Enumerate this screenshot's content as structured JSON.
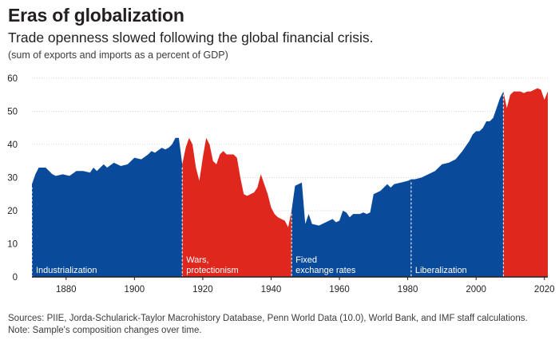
{
  "header": {
    "title": "Eras of globalization",
    "subtitle": "Trade openness slowed following the global financial crisis.",
    "units_note": "(sum of exports and imports as a percent of GDP)"
  },
  "footer": {
    "sources": "Sources: PIIE, Jorda-Schularick-Taylor Macrohistory Database, Penn World Data (10.0), World Bank, and IMF staff calculations.",
    "note": "Note: Sample's composition changes over time."
  },
  "colors": {
    "blue": "#0a4a9a",
    "red": "#e0271d",
    "axis": "#231f20",
    "grid": "#c8c8c8"
  },
  "chart_data": {
    "type": "area",
    "title": "Eras of globalization",
    "xlabel": "",
    "ylabel": "",
    "xlim": [
      1870,
      2021
    ],
    "ylim": [
      0,
      60
    ],
    "x_ticks": [
      1880,
      1900,
      1920,
      1940,
      1960,
      1980,
      2000,
      2020
    ],
    "y_ticks": [
      0,
      10,
      20,
      30,
      40,
      50,
      60
    ],
    "grid": "horizontal",
    "eras": [
      {
        "label": "Industrialization",
        "start": 1870,
        "end": 1914,
        "color": "blue",
        "points": [
          [
            1870,
            28
          ],
          [
            1871,
            31
          ],
          [
            1872,
            33
          ],
          [
            1874,
            33
          ],
          [
            1876,
            31
          ],
          [
            1877,
            30.5
          ],
          [
            1879,
            31
          ],
          [
            1881,
            30.5
          ],
          [
            1883,
            32
          ],
          [
            1885,
            32
          ],
          [
            1887,
            31.5
          ],
          [
            1888,
            33
          ],
          [
            1889,
            32
          ],
          [
            1891,
            34
          ],
          [
            1892,
            33
          ],
          [
            1894,
            34.5
          ],
          [
            1896,
            33.5
          ],
          [
            1898,
            34
          ],
          [
            1900,
            36
          ],
          [
            1902,
            35.5
          ],
          [
            1904,
            37
          ],
          [
            1905,
            38
          ],
          [
            1906,
            37.5
          ],
          [
            1908,
            39
          ],
          [
            1909,
            38.5
          ],
          [
            1910,
            39
          ],
          [
            1911,
            40
          ],
          [
            1912,
            42
          ],
          [
            1913,
            42
          ],
          [
            1914,
            34
          ]
        ]
      },
      {
        "label": "Wars, protectionism",
        "start": 1914,
        "end": 1946,
        "color": "red",
        "points": [
          [
            1914,
            34
          ],
          [
            1915,
            39
          ],
          [
            1916,
            42
          ],
          [
            1917,
            40
          ],
          [
            1918,
            33
          ],
          [
            1919,
            29
          ],
          [
            1920,
            36
          ],
          [
            1921,
            42
          ],
          [
            1922,
            40
          ],
          [
            1923,
            35
          ],
          [
            1924,
            34
          ],
          [
            1925,
            37
          ],
          [
            1926,
            38
          ],
          [
            1927,
            37
          ],
          [
            1928,
            37
          ],
          [
            1929,
            37
          ],
          [
            1930,
            36
          ],
          [
            1931,
            30
          ],
          [
            1932,
            25
          ],
          [
            1933,
            24.5
          ],
          [
            1934,
            25
          ],
          [
            1935,
            25.5
          ],
          [
            1936,
            27
          ],
          [
            1937,
            31
          ],
          [
            1938,
            28
          ],
          [
            1939,
            25
          ],
          [
            1940,
            21
          ],
          [
            1941,
            19
          ],
          [
            1942,
            18
          ],
          [
            1943,
            17.5
          ],
          [
            1944,
            17
          ],
          [
            1945,
            15
          ],
          [
            1946,
            20
          ]
        ]
      },
      {
        "label": "Fixed exchange rates",
        "start": 1946,
        "end": 1981,
        "color": "blue",
        "points": [
          [
            1946,
            20
          ],
          [
            1947,
            27.5
          ],
          [
            1948,
            28
          ],
          [
            1949,
            28.5
          ],
          [
            1950,
            16
          ],
          [
            1951,
            19
          ],
          [
            1952,
            16
          ],
          [
            1954,
            15.5
          ],
          [
            1956,
            16.5
          ],
          [
            1958,
            17.5
          ],
          [
            1959,
            16.5
          ],
          [
            1960,
            17
          ],
          [
            1961,
            20
          ],
          [
            1962,
            19.5
          ],
          [
            1963,
            18
          ],
          [
            1964,
            19
          ],
          [
            1966,
            19
          ],
          [
            1967,
            19.5
          ],
          [
            1968,
            19
          ],
          [
            1969,
            19.5
          ],
          [
            1970,
            25
          ],
          [
            1972,
            26
          ],
          [
            1974,
            28
          ],
          [
            1975,
            27
          ],
          [
            1976,
            28
          ],
          [
            1978,
            28.5
          ],
          [
            1980,
            29
          ],
          [
            1981,
            29.5
          ]
        ]
      },
      {
        "label": "Liberalization",
        "start": 1981,
        "end": 2008,
        "color": "blue",
        "points": [
          [
            1981,
            29.5
          ],
          [
            1982,
            29.5
          ],
          [
            1984,
            30
          ],
          [
            1986,
            31
          ],
          [
            1988,
            32
          ],
          [
            1990,
            34
          ],
          [
            1992,
            34.5
          ],
          [
            1994,
            35.5
          ],
          [
            1996,
            38
          ],
          [
            1998,
            41
          ],
          [
            1999,
            43
          ],
          [
            2000,
            44
          ],
          [
            2001,
            44
          ],
          [
            2002,
            45
          ],
          [
            2003,
            47
          ],
          [
            2004,
            47
          ],
          [
            2005,
            48
          ],
          [
            2006,
            51
          ],
          [
            2007,
            54
          ],
          [
            2008,
            56
          ]
        ]
      },
      {
        "label": "",
        "start": 2008,
        "end": 2021,
        "color": "red",
        "points": [
          [
            2008,
            56
          ],
          [
            2009,
            51
          ],
          [
            2010,
            55
          ],
          [
            2011,
            56
          ],
          [
            2012,
            56
          ],
          [
            2013,
            56
          ],
          [
            2014,
            55.5
          ],
          [
            2015,
            56
          ],
          [
            2016,
            56
          ],
          [
            2017,
            56.5
          ],
          [
            2018,
            57
          ],
          [
            2019,
            56.5
          ],
          [
            2020,
            53.5
          ],
          [
            2021,
            56
          ]
        ]
      }
    ],
    "boundaries": [
      1870,
      1914,
      1946,
      1981,
      2008
    ]
  }
}
